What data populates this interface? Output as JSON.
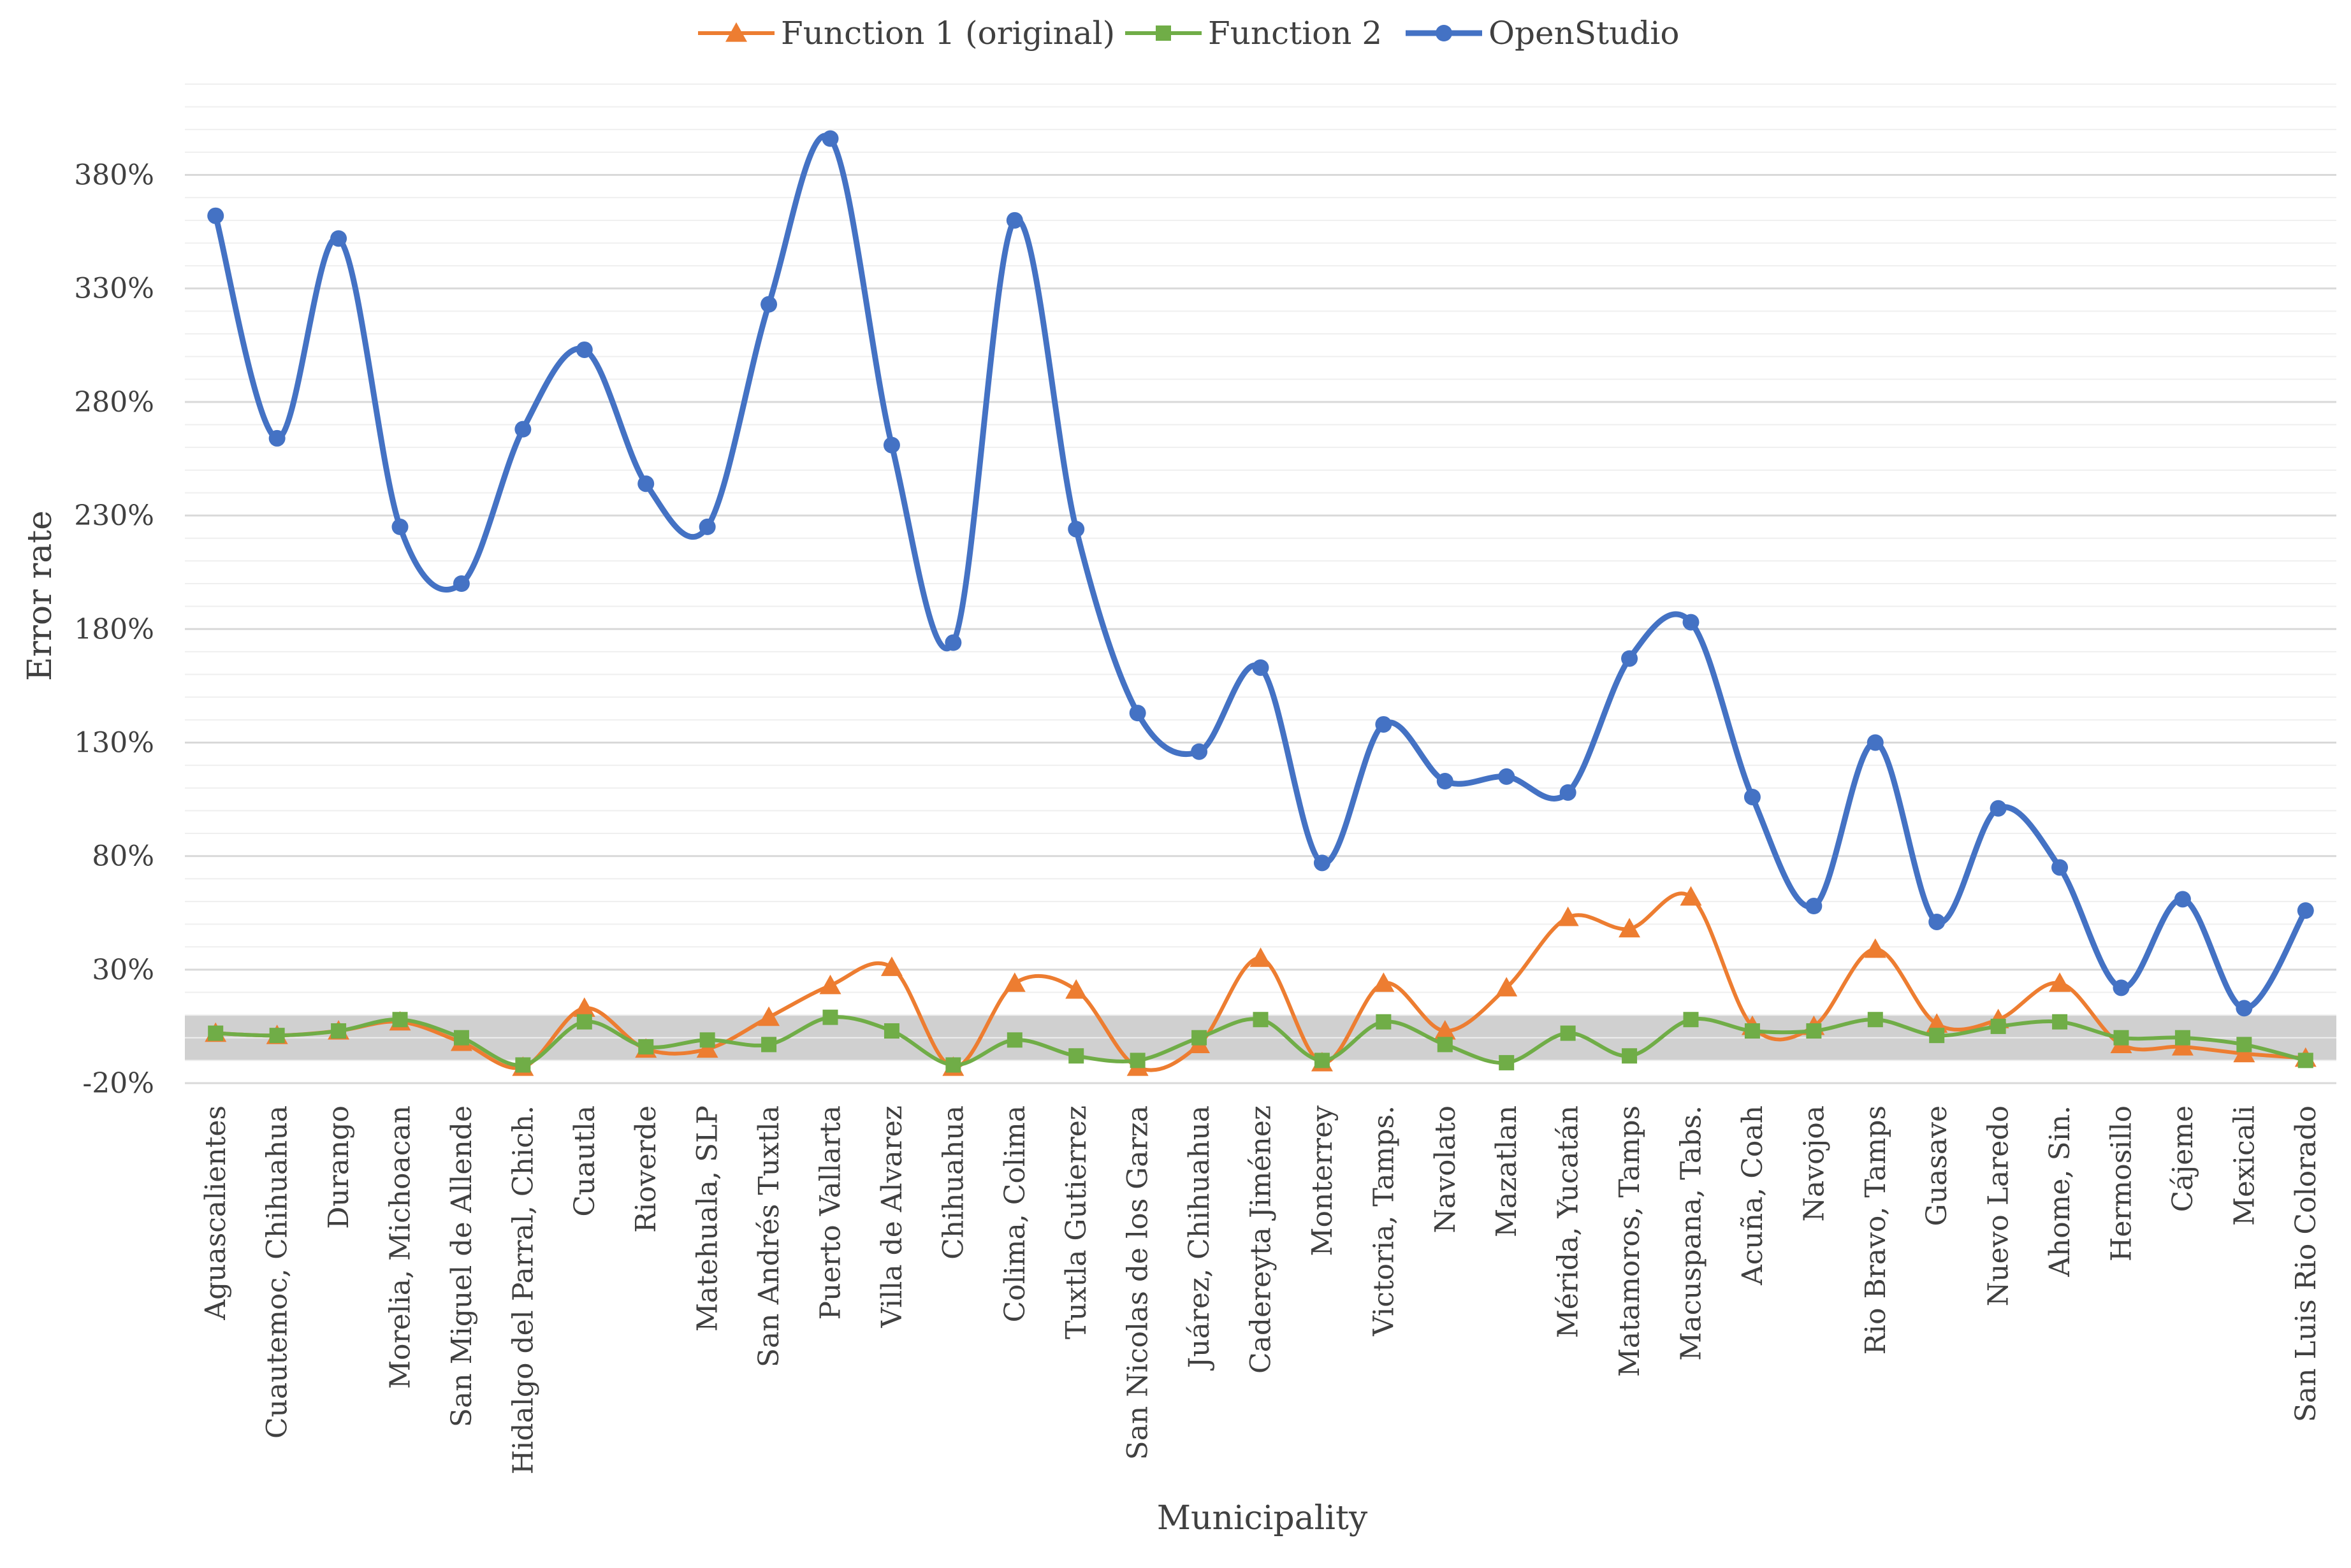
{
  "chart_data": {
    "type": "line",
    "xlabel": "Municipality",
    "ylabel": "Error rate",
    "ylim": [
      -20,
      420
    ],
    "y_ticks": [
      "-20%",
      "30%",
      "80%",
      "130%",
      "180%",
      "230%",
      "280%",
      "330%",
      "380%"
    ],
    "y_tick_values": [
      -20,
      30,
      80,
      130,
      180,
      230,
      280,
      330,
      380
    ],
    "grid": "horizontal major and minor",
    "legend_position": "top",
    "shaded_band": {
      "from": -10,
      "to": 10,
      "color": "#d0d0d0"
    },
    "categories": [
      "Aguascalientes",
      "Cuautemoc, Chihuahua",
      "Durango",
      "Morelia, Michoacan",
      "San Miguel de Allende",
      "Hidalgo del Parral, Chich.",
      "Cuautla",
      "Rioverde",
      "Matehuala, SLP",
      "San Andrés Tuxtla",
      "Puerto Vallarta",
      "Villa de Alvarez",
      "Chihuahua",
      "Colima, Colima",
      "Tuxtla Gutierrez",
      "San Nicolas de los Garza",
      "Juárez, Chihuahua",
      "Cadereyta Jiménez",
      "Monterrey",
      "Victoria, Tamps.",
      "Navolato",
      "Mazatlan",
      "Mérida, Yucatán",
      "Matamoros, Tamps",
      "Macuspana, Tabs.",
      "Acuña, Coah",
      "Navojoa",
      "Rio Bravo, Tamps",
      "Guasave",
      "Nuevo Laredo",
      "Ahome, Sin.",
      "Hermosillo",
      "Cájeme",
      "Mexicali",
      "San Luis Rio Colorado"
    ],
    "series": [
      {
        "name": "Function 1 (original)",
        "color": "#ED7D31",
        "marker": "triangle",
        "values": [
          2,
          1,
          3,
          7,
          -2,
          -13,
          13,
          -5,
          -5,
          9,
          23,
          31,
          -13,
          24,
          21,
          -13,
          -3,
          35,
          -11,
          24,
          3,
          22,
          53,
          48,
          62,
          5,
          5,
          39,
          6,
          8,
          24,
          -3,
          -4,
          -7,
          -9
        ]
      },
      {
        "name": "Function 2",
        "color": "#70AD47",
        "marker": "square",
        "values": [
          2,
          1,
          3,
          8,
          0,
          -12,
          7,
          -4,
          -1,
          -3,
          9,
          3,
          -12,
          -1,
          -8,
          -10,
          0,
          8,
          -10,
          7,
          -3,
          -11,
          2,
          -8,
          8,
          3,
          3,
          8,
          1,
          5,
          7,
          0,
          0,
          -3,
          -10
        ]
      },
      {
        "name": "OpenStudio",
        "color": "#4472C4",
        "marker": "circle",
        "values": [
          362,
          264,
          352,
          225,
          200,
          268,
          303,
          244,
          225,
          323,
          396,
          261,
          174,
          360,
          224,
          143,
          126,
          163,
          77,
          138,
          113,
          115,
          108,
          167,
          183,
          106,
          58,
          130,
          51,
          101,
          75,
          22,
          61,
          13,
          56
        ]
      }
    ]
  }
}
